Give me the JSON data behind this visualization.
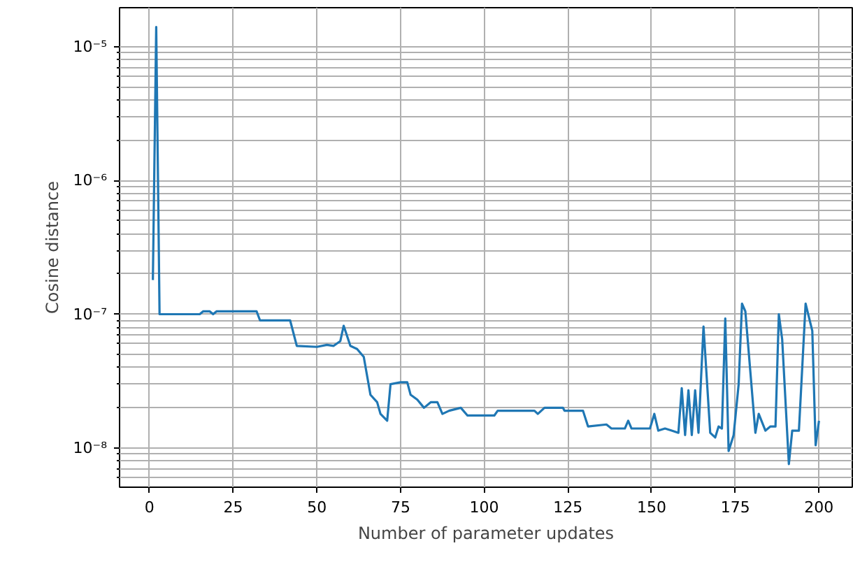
{
  "chart_data": {
    "type": "line",
    "xlabel": "Number of parameter updates",
    "ylabel": "Cosine distance",
    "log": "y",
    "grid": true,
    "marker": "none",
    "line_style": "solid",
    "xlim": [
      -8.95,
      209.95
    ],
    "xticks": [
      0,
      25,
      50,
      75,
      100,
      125,
      150,
      175,
      200
    ],
    "ylim": [
      5.1e-09,
      1.95e-05
    ],
    "yticks": [
      {
        "value": 1e-08,
        "label": "10⁻⁸"
      },
      {
        "value": 1e-07,
        "label": "10⁻⁷"
      },
      {
        "value": 1e-06,
        "label": "10⁻⁶"
      },
      {
        "value": 1e-05,
        "label": "10⁻⁵"
      }
    ],
    "series": [
      {
        "color": "#1f77b4",
        "x": [
          1,
          2,
          3,
          15,
          16,
          18,
          19,
          20,
          32,
          33,
          42,
          44,
          50,
          53,
          55,
          57,
          58,
          60,
          62,
          64,
          66,
          68,
          69,
          71,
          72,
          75,
          77,
          78,
          80,
          82,
          84,
          86,
          87.5,
          89.5,
          93,
          95,
          103,
          104,
          115,
          116,
          118,
          123.5,
          124,
          129.5,
          131,
          136.5,
          138,
          142,
          143,
          144,
          149.5,
          150.8,
          152,
          154,
          156,
          158,
          159,
          160,
          161,
          162,
          163,
          164,
          165.5,
          167.5,
          169,
          170,
          171,
          172,
          173,
          174.5,
          176,
          177,
          178,
          181,
          182,
          184,
          185.5,
          187,
          188,
          189,
          191,
          192,
          194,
          196,
          198,
          199,
          200
        ],
        "values": [
          1.8e-07,
          1.4e-05,
          1e-07,
          1e-07,
          1.05e-07,
          1.05e-07,
          1e-07,
          1.05e-07,
          1.05e-07,
          9e-08,
          9e-08,
          5.8e-08,
          5.7e-08,
          5.9e-08,
          5.8e-08,
          6.3e-08,
          8.2e-08,
          5.8e-08,
          5.5e-08,
          4.8e-08,
          2.5e-08,
          2.2e-08,
          1.8e-08,
          1.6e-08,
          3e-08,
          3.1e-08,
          3.1e-08,
          2.5e-08,
          2.3e-08,
          2e-08,
          2.2e-08,
          2.2e-08,
          1.8e-08,
          1.9e-08,
          2e-08,
          1.75e-08,
          1.75e-08,
          1.9e-08,
          1.9e-08,
          1.8e-08,
          2e-08,
          2e-08,
          1.9e-08,
          1.9e-08,
          1.45e-08,
          1.5e-08,
          1.4e-08,
          1.4e-08,
          1.6e-08,
          1.4e-08,
          1.4e-08,
          1.8e-08,
          1.35e-08,
          1.4e-08,
          1.35e-08,
          1.3e-08,
          2.8e-08,
          1.25e-08,
          2.7e-08,
          1.25e-08,
          2.7e-08,
          1.3e-08,
          8.1e-08,
          1.3e-08,
          1.2e-08,
          1.45e-08,
          1.4e-08,
          9.3e-08,
          9.5e-09,
          1.25e-08,
          3e-08,
          1.2e-07,
          1.05e-07,
          1.3e-08,
          1.8e-08,
          1.35e-08,
          1.45e-08,
          1.45e-08,
          1e-07,
          6.5e-08,
          7.6e-09,
          1.35e-08,
          1.35e-08,
          1.2e-07,
          7.5e-08,
          1.05e-08,
          1.6e-08
        ]
      }
    ]
  }
}
